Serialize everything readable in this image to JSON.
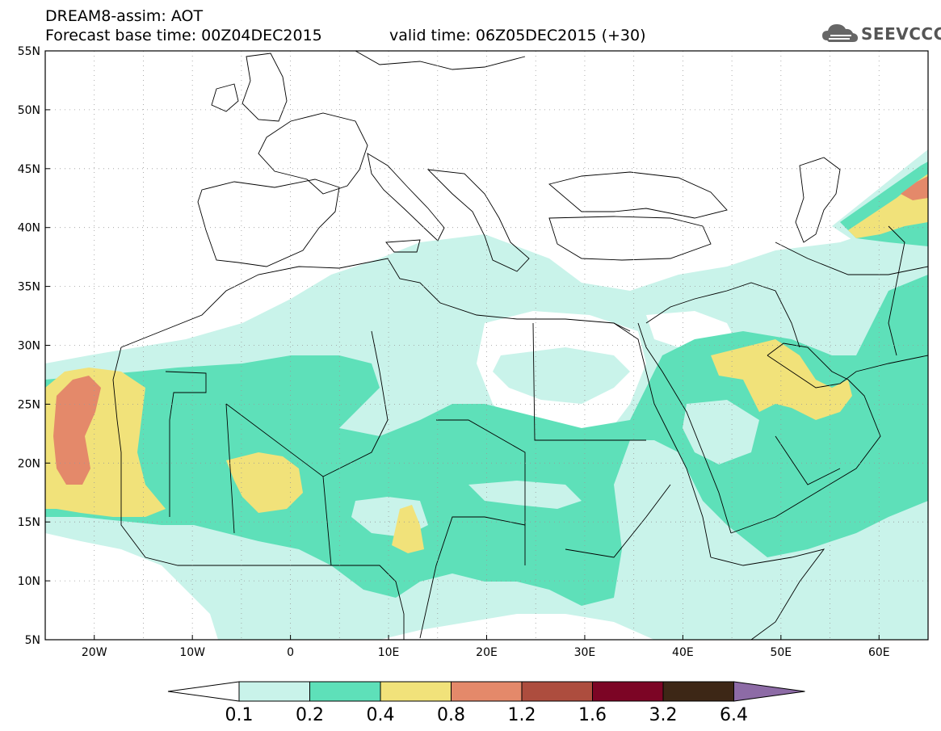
{
  "header": {
    "title": "DREAM8-assim: AOT",
    "base_time": "Forecast base time: 00Z04DEC2015",
    "valid_time": "valid time: 06Z05DEC2015 (+30)"
  },
  "logo": {
    "text": "SEEVCCC",
    "icon": "cloud-icon"
  },
  "map": {
    "projection": "lat-lon",
    "lon_range": [
      -25,
      65
    ],
    "lat_range": [
      5,
      55
    ],
    "lat_labels": [
      "55N",
      "50N",
      "45N",
      "40N",
      "35N",
      "30N",
      "25N",
      "20N",
      "15N",
      "10N",
      "5N"
    ],
    "lon_labels": [
      "20W",
      "10W",
      "0",
      "10E",
      "20E",
      "30E",
      "40E",
      "50E",
      "60E"
    ],
    "gridlines": "dotted"
  },
  "colorbar": {
    "levels": [
      "0.1",
      "0.2",
      "0.4",
      "0.8",
      "1.2",
      "1.6",
      "3.2",
      "6.4"
    ],
    "colors": [
      "#c9f3ea",
      "#5ee0b9",
      "#f1e27a",
      "#e4896a",
      "#ad4d3e",
      "#7c0525",
      "#3d2716",
      "#8d6ba6"
    ],
    "under_color": "#ffffff",
    "over_color": "#8d6ba6"
  }
}
